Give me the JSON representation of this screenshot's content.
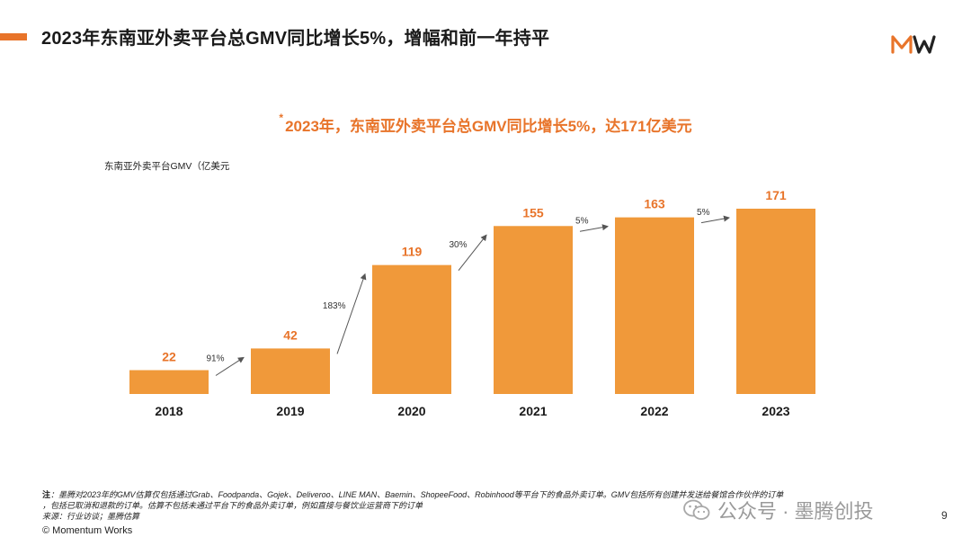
{
  "header": {
    "title": "2023年东南亚外卖平台总GMV同比增长5%，增幅和前一年持平",
    "logo_text": "MW",
    "accent_color": "#e8742a"
  },
  "chart_data": {
    "type": "bar",
    "title": "2023年，东南亚外卖平台总GMV同比增长5%，达171亿美元",
    "title_marker": "*",
    "ylabel": "东南亚外卖平台GMV（亿美元",
    "xlabel": "",
    "categories": [
      "2018",
      "2019",
      "2020",
      "2021",
      "2022",
      "2023"
    ],
    "values": [
      22,
      42,
      119,
      155,
      163,
      171
    ],
    "growth_labels": [
      "91%",
      "183%",
      "30%",
      "5%",
      "5%"
    ],
    "ylim": [
      0,
      171
    ],
    "grid": false,
    "bar_color": "#f0993a",
    "value_label_color": "#e8742a"
  },
  "footer": {
    "note_label": "注",
    "note_line1": "：墨腾对2023年的GMV估算仅包括通过Grab、Foodpanda、Gojek、Deliveroo、LINE MAN、Baemin、ShopeeFood、Robinhood等平台下的食品外卖订单。GMV包括所有创建并发送给餐馆合作伙伴的订单",
    "note_line2": "，包括已取消和退款的订单。估算不包括未通过平台下的食品外卖订单，例如直接与餐饮业运营商下的订单",
    "source": "来源：行业访谈；墨腾估算",
    "copyright": "© Momentum Works",
    "wechat_label": "公众号 · 墨腾创投",
    "page_number": "9"
  }
}
